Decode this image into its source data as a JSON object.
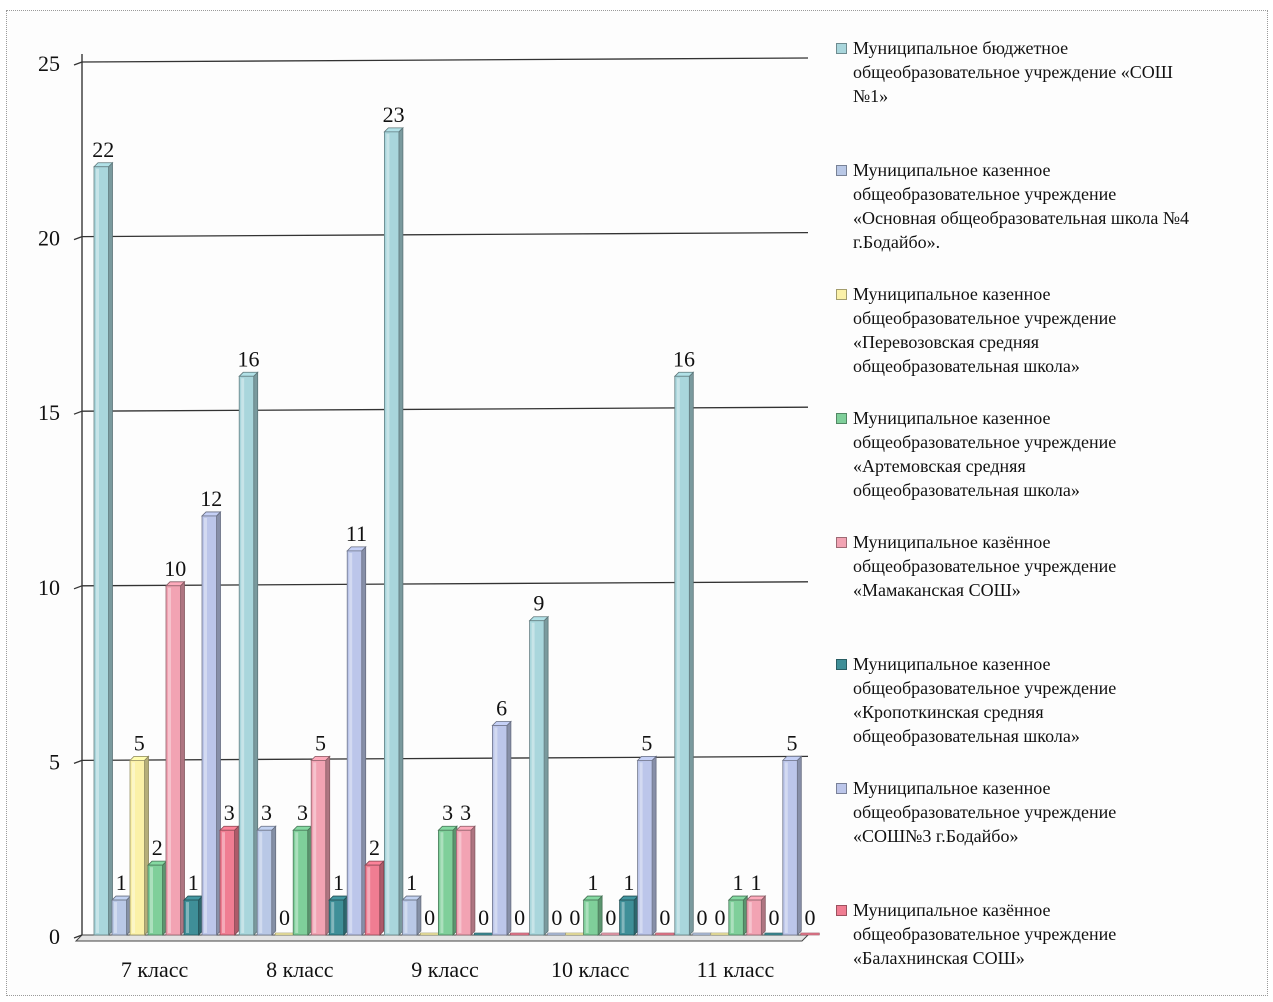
{
  "chart_data": {
    "type": "bar",
    "title": "",
    "xlabel": "",
    "ylabel": "",
    "ylim": [
      0,
      25
    ],
    "yticks": [
      "0",
      "5",
      "10",
      "15",
      "20",
      "25"
    ],
    "grid": true,
    "legend_position": "right",
    "categories": [
      "7 класс",
      "8 класс",
      "9 класс",
      "10 класс",
      "11 класс"
    ],
    "series": [
      {
        "name": "Муниципальное бюджетное\nобщеобразовательное учреждение «СОШ\n№1»",
        "color": "#a9d6dc",
        "values": [
          22,
          16,
          23,
          9,
          16
        ]
      },
      {
        "name": "Муниципальное казенное\nобщеобразовательное  учреждение\n«Основная общеобразовательная школа №4\nг.Бодайбо».",
        "color": "#b9c8e6",
        "values": [
          1,
          3,
          1,
          0,
          0
        ]
      },
      {
        "name": "Муниципальное казенное\nобщеобразовательное учреждение\n«Перевозовская средняя\nобщеобразовательная школа»",
        "color": "#fbf1a8",
        "values": [
          5,
          0,
          0,
          0,
          0
        ]
      },
      {
        "name": "Муниципальное казенное\nобщеобразовательное учреждение\n«Артемовская средняя\nобщеобразовательная школа»",
        "color": "#7fcf9a",
        "values": [
          2,
          3,
          3,
          1,
          1
        ]
      },
      {
        "name": "Муниципальное казённое\nобщеобразовательное учреждение\n«Мамаканская СОШ»",
        "color": "#f2a3b3",
        "values": [
          10,
          5,
          3,
          0,
          1
        ]
      },
      {
        "name": "Муниципальное казенное\nобщеобразовательное учреждение\n«Кропоткинская  средняя\nобщеобразовательная школа»",
        "color": "#3f8f98",
        "values": [
          1,
          1,
          0,
          1,
          0
        ]
      },
      {
        "name": "Муниципальное казенное\nобщеобразовательное учреждение\n«СОШ№3 г.Бодайбо»",
        "color": "#bcc6ea",
        "values": [
          12,
          11,
          6,
          5,
          5
        ]
      },
      {
        "name": "Муниципальное казённое\nобщеобразовательное учреждение\n«Балахнинская СОШ»",
        "color": "#f07d92",
        "values": [
          3,
          2,
          0,
          0,
          0
        ]
      }
    ]
  }
}
